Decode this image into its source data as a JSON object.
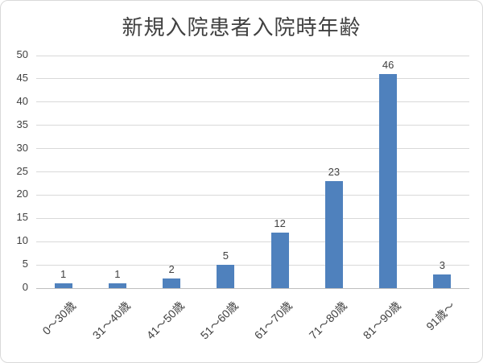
{
  "chart_data": {
    "type": "bar",
    "title": "新規入院患者入院時年齢",
    "categories": [
      "0～30歳",
      "31～40歳",
      "41～50歳",
      "51～60歳",
      "61～70歳",
      "71～80歳",
      "81～90歳",
      "91歳～"
    ],
    "values": [
      1,
      1,
      2,
      5,
      12,
      23,
      46,
      3
    ],
    "data_labels": [
      "1",
      "1",
      "2",
      "5",
      "12",
      "23",
      "46",
      "3"
    ],
    "xlabel": "",
    "ylabel": "",
    "ylim": [
      0,
      50
    ],
    "ytick_step": 5,
    "yticks": [
      0,
      5,
      10,
      15,
      20,
      25,
      30,
      35,
      40,
      45,
      50
    ],
    "grid": true,
    "legend": "none",
    "colors": {
      "bar": "#4F81BD",
      "gridline": "#D9D9D9",
      "axis_line": "#BFBFBF",
      "text": "#404040",
      "frame_border": "#D9D9D9",
      "background": "#FFFFFF"
    }
  }
}
